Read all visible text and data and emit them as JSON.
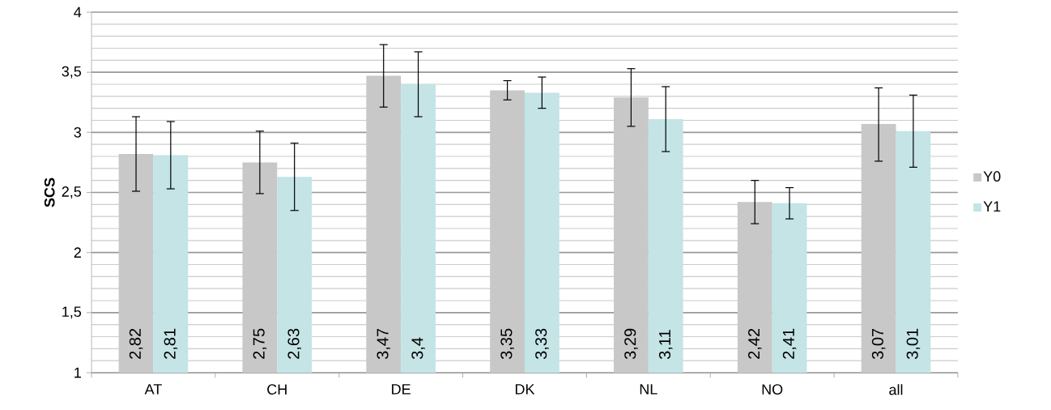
{
  "chart_data": {
    "type": "bar",
    "ylabel": "SCS",
    "categories": [
      "AT",
      "CH",
      "DE",
      "DK",
      "NL",
      "NO",
      "all"
    ],
    "series": [
      {
        "name": "Y0",
        "color": "#c8c8c8",
        "values": [
          2.82,
          2.75,
          3.47,
          3.35,
          3.29,
          2.42,
          3.07
        ],
        "value_labels": [
          "2,82",
          "2,75",
          "3,47",
          "3,35",
          "3,29",
          "2,42",
          "3,07"
        ],
        "errors": [
          [
            2.51,
            3.13
          ],
          [
            2.49,
            3.01
          ],
          [
            3.21,
            3.73
          ],
          [
            3.27,
            3.43
          ],
          [
            3.05,
            3.53
          ],
          [
            2.24,
            2.6
          ],
          [
            2.76,
            3.37
          ]
        ]
      },
      {
        "name": "Y1",
        "color": "#c4e4e6",
        "values": [
          2.81,
          2.63,
          3.4,
          3.33,
          3.11,
          2.41,
          3.01
        ],
        "value_labels": [
          "2,81",
          "2,63",
          "3,4",
          "3,33",
          "3,11",
          "2,41",
          "3,01"
        ],
        "errors": [
          [
            2.53,
            3.09
          ],
          [
            2.35,
            2.91
          ],
          [
            3.13,
            3.67
          ],
          [
            3.2,
            3.46
          ],
          [
            2.84,
            3.38
          ],
          [
            2.28,
            2.54
          ],
          [
            2.71,
            3.31
          ]
        ]
      }
    ],
    "ylim": [
      1,
      4
    ],
    "yticks": [
      1,
      {
        "value": 1.5,
        "label": "1,5"
      },
      2,
      {
        "value": 2.5,
        "label": "2,5"
      },
      3,
      {
        "value": 3.5,
        "label": "3,5"
      },
      4
    ],
    "grid": "y",
    "legend": "right"
  }
}
